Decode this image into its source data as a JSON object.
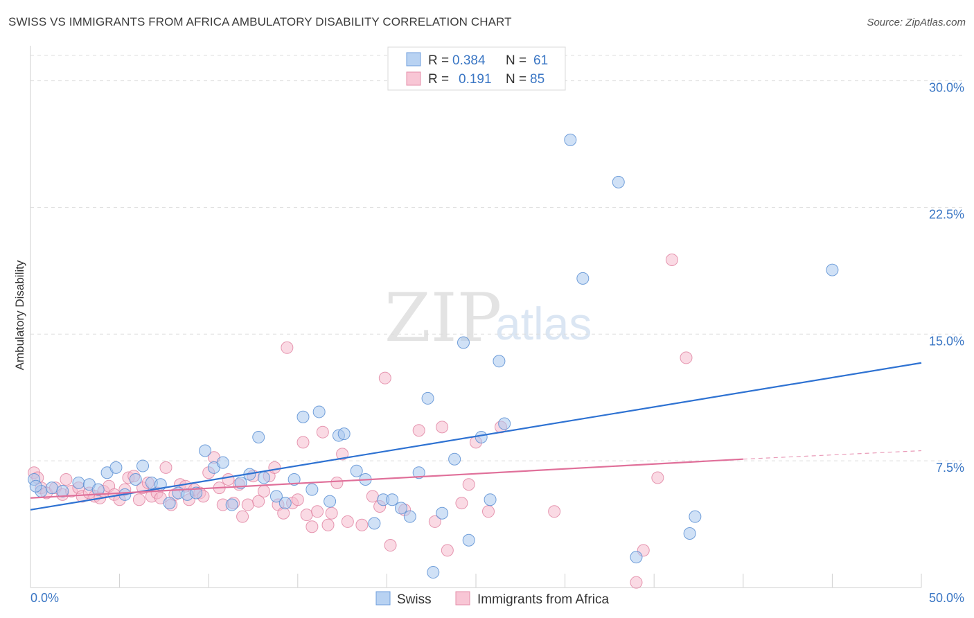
{
  "header": {
    "title": "SWISS VS IMMIGRANTS FROM AFRICA AMBULATORY DISABILITY CORRELATION CHART",
    "source": "Source: ZipAtlas.com"
  },
  "watermark": {
    "zip": "ZIP",
    "atlas": "atlas"
  },
  "legend_top": [
    {
      "r_label": "R = ",
      "r_value": "0.384",
      "n_label": "N = ",
      "n_value": "61"
    },
    {
      "r_label": "R = ",
      "r_value": "0.191",
      "n_label": "N = ",
      "n_value": "85"
    }
  ],
  "legend_bottom": [
    "Swiss",
    "Immigrants from Africa"
  ],
  "colors": {
    "swiss_fill": "#aac8ee",
    "swiss_stroke": "#5b8fd4",
    "swiss_line": "#2e72d2",
    "africa_fill": "#f6bccd",
    "africa_stroke": "#e07f9f",
    "africa_line": "#e0709a",
    "tick_text": "#3a76c4",
    "grid": "#dddddd"
  },
  "chart_data": {
    "type": "scatter",
    "title": "SWISS VS IMMIGRANTS FROM AFRICA AMBULATORY DISABILITY CORRELATION CHART",
    "xlabel": "",
    "ylabel": "Ambulatory Disability",
    "xlim": [
      0,
      50
    ],
    "ylim": [
      0,
      31.5
    ],
    "x_tick_labels": [
      "0.0%",
      "50.0%"
    ],
    "y_ticks": [
      7.5,
      15.0,
      22.5,
      30.0
    ],
    "y_tick_labels": [
      "7.5%",
      "15.0%",
      "22.5%",
      "30.0%"
    ],
    "grid": "horizontal dashed",
    "legend": "top-center",
    "series": [
      {
        "name": "Swiss",
        "R": 0.384,
        "N": 61,
        "trend": {
          "x": [
            0,
            50
          ],
          "y": [
            4.6,
            13.3
          ]
        },
        "points": [
          [
            0.2,
            6.4
          ],
          [
            0.6,
            5.7
          ],
          [
            1.2,
            5.9
          ],
          [
            1.8,
            5.7
          ],
          [
            2.7,
            6.2
          ],
          [
            3.3,
            6.1
          ],
          [
            3.8,
            5.8
          ],
          [
            4.3,
            6.8
          ],
          [
            4.8,
            7.1
          ],
          [
            5.3,
            5.5
          ],
          [
            5.9,
            6.4
          ],
          [
            6.3,
            7.2
          ],
          [
            6.8,
            6.2
          ],
          [
            7.3,
            6.1
          ],
          [
            7.8,
            5.0
          ],
          [
            8.3,
            5.6
          ],
          [
            8.8,
            5.5
          ],
          [
            9.3,
            5.6
          ],
          [
            9.8,
            8.1
          ],
          [
            10.3,
            7.1
          ],
          [
            10.8,
            7.4
          ],
          [
            11.3,
            4.9
          ],
          [
            11.8,
            6.2
          ],
          [
            12.3,
            6.7
          ],
          [
            12.8,
            8.9
          ],
          [
            13.1,
            6.5
          ],
          [
            13.8,
            5.4
          ],
          [
            14.3,
            5.0
          ],
          [
            14.8,
            6.4
          ],
          [
            15.3,
            10.1
          ],
          [
            15.8,
            5.8
          ],
          [
            16.2,
            10.4
          ],
          [
            16.8,
            5.1
          ],
          [
            17.3,
            9.0
          ],
          [
            17.6,
            9.1
          ],
          [
            18.3,
            6.9
          ],
          [
            18.8,
            6.4
          ],
          [
            19.3,
            3.8
          ],
          [
            19.8,
            5.2
          ],
          [
            20.3,
            5.2
          ],
          [
            20.8,
            4.7
          ],
          [
            21.3,
            4.2
          ],
          [
            21.8,
            6.8
          ],
          [
            22.3,
            11.2
          ],
          [
            22.6,
            0.9
          ],
          [
            23.1,
            4.4
          ],
          [
            23.8,
            7.6
          ],
          [
            24.3,
            14.5
          ],
          [
            24.6,
            2.8
          ],
          [
            25.3,
            8.9
          ],
          [
            25.8,
            5.2
          ],
          [
            26.3,
            13.4
          ],
          [
            26.6,
            9.7
          ],
          [
            30.3,
            26.5
          ],
          [
            31.0,
            18.3
          ],
          [
            33.0,
            24.0
          ],
          [
            34.0,
            1.8
          ],
          [
            37.0,
            3.2
          ],
          [
            37.3,
            4.2
          ],
          [
            45.0,
            18.8
          ],
          [
            0.3,
            6.0
          ]
        ]
      },
      {
        "name": "Immigrants from Africa",
        "R": 0.191,
        "N": 85,
        "trend": {
          "x": [
            0,
            40
          ],
          "y": [
            5.3,
            7.6
          ]
        },
        "trend_dashed": {
          "x": [
            40,
            50
          ],
          "y": [
            7.6,
            8.1
          ]
        },
        "points": [
          [
            0.2,
            6.8
          ],
          [
            0.6,
            5.9
          ],
          [
            0.9,
            5.6
          ],
          [
            1.4,
            5.9
          ],
          [
            1.8,
            5.5
          ],
          [
            2.0,
            6.4
          ],
          [
            2.3,
            5.7
          ],
          [
            2.7,
            5.9
          ],
          [
            2.9,
            5.4
          ],
          [
            3.3,
            5.6
          ],
          [
            3.6,
            5.4
          ],
          [
            3.9,
            5.3
          ],
          [
            4.1,
            5.7
          ],
          [
            4.4,
            6.0
          ],
          [
            4.7,
            5.5
          ],
          [
            5.0,
            5.2
          ],
          [
            5.3,
            5.8
          ],
          [
            5.5,
            6.5
          ],
          [
            5.8,
            6.6
          ],
          [
            6.1,
            5.2
          ],
          [
            6.3,
            5.9
          ],
          [
            6.6,
            6.2
          ],
          [
            6.8,
            5.4
          ],
          [
            7.1,
            5.6
          ],
          [
            7.3,
            5.3
          ],
          [
            7.6,
            7.1
          ],
          [
            7.9,
            4.9
          ],
          [
            8.1,
            5.5
          ],
          [
            8.4,
            6.1
          ],
          [
            8.7,
            6.0
          ],
          [
            8.9,
            5.2
          ],
          [
            9.2,
            5.8
          ],
          [
            9.5,
            5.6
          ],
          [
            9.7,
            5.4
          ],
          [
            10.0,
            6.8
          ],
          [
            10.3,
            7.7
          ],
          [
            10.6,
            5.9
          ],
          [
            10.8,
            4.9
          ],
          [
            11.1,
            6.4
          ],
          [
            11.4,
            5.0
          ],
          [
            11.7,
            6.1
          ],
          [
            11.9,
            4.2
          ],
          [
            12.2,
            4.9
          ],
          [
            12.5,
            6.6
          ],
          [
            12.8,
            5.1
          ],
          [
            13.1,
            5.7
          ],
          [
            13.4,
            6.6
          ],
          [
            13.7,
            7.1
          ],
          [
            13.9,
            4.9
          ],
          [
            14.2,
            4.4
          ],
          [
            14.4,
            14.2
          ],
          [
            14.7,
            5.0
          ],
          [
            15.0,
            5.2
          ],
          [
            15.3,
            8.6
          ],
          [
            15.5,
            4.3
          ],
          [
            15.8,
            3.6
          ],
          [
            16.1,
            4.5
          ],
          [
            16.4,
            9.2
          ],
          [
            16.7,
            3.7
          ],
          [
            16.9,
            4.4
          ],
          [
            17.2,
            6.2
          ],
          [
            17.5,
            7.9
          ],
          [
            17.8,
            3.9
          ],
          [
            18.6,
            3.7
          ],
          [
            19.2,
            5.4
          ],
          [
            19.6,
            4.8
          ],
          [
            19.9,
            12.4
          ],
          [
            20.2,
            2.5
          ],
          [
            21.0,
            4.6
          ],
          [
            21.8,
            9.3
          ],
          [
            22.7,
            3.9
          ],
          [
            23.1,
            9.5
          ],
          [
            23.4,
            2.2
          ],
          [
            24.2,
            5.0
          ],
          [
            24.6,
            6.1
          ],
          [
            25.0,
            8.6
          ],
          [
            25.7,
            4.5
          ],
          [
            26.4,
            9.5
          ],
          [
            29.4,
            4.5
          ],
          [
            34.0,
            0.3
          ],
          [
            34.4,
            2.2
          ],
          [
            35.2,
            6.5
          ],
          [
            36.0,
            19.4
          ],
          [
            36.8,
            13.6
          ],
          [
            0.4,
            6.5
          ]
        ]
      }
    ]
  }
}
